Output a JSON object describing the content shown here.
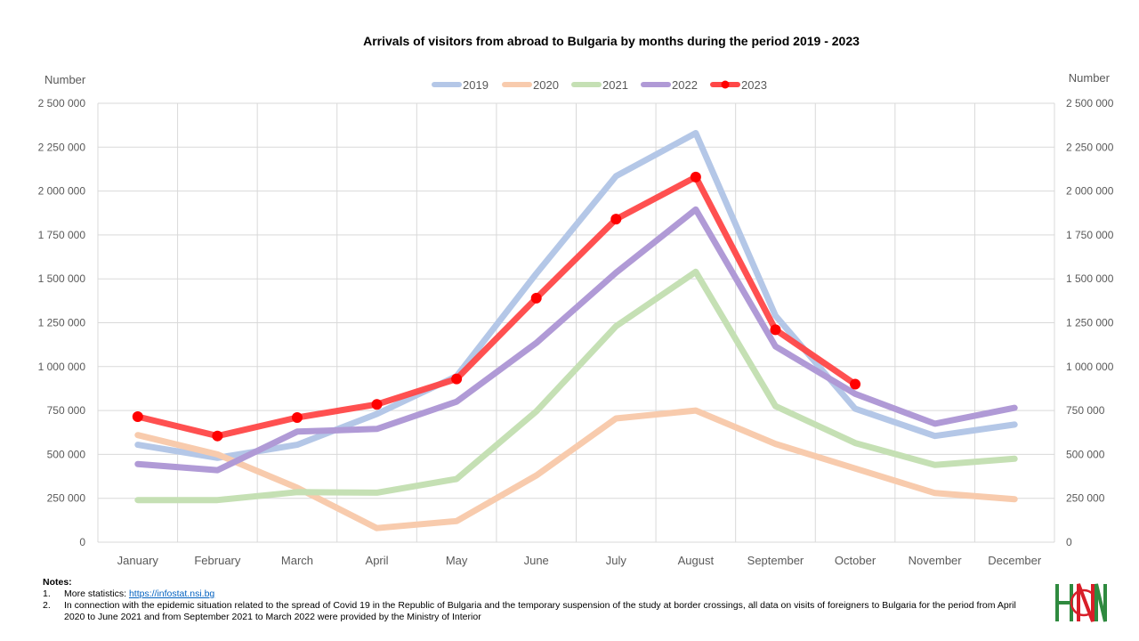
{
  "chart_data": {
    "type": "line",
    "title": "Arrivals of visitors from abroad to Bulgaria by months during the period 2019 - 2023",
    "ylabel_left": "Number",
    "ylabel_right": "Number",
    "ylim": [
      0,
      2500000
    ],
    "yticks": [
      "0",
      "250 000",
      "500 000",
      "750 000",
      "1 000 000",
      "1 250 000",
      "1 500 000",
      "1 750 000",
      "2 000 000",
      "2 250 000",
      "2 500 000"
    ],
    "ytick_values": [
      0,
      250000,
      500000,
      750000,
      1000000,
      1250000,
      1500000,
      1750000,
      2000000,
      2250000,
      2500000
    ],
    "categories": [
      "January",
      "February",
      "March",
      "April",
      "May",
      "June",
      "July",
      "August",
      "September",
      "October",
      "November",
      "December"
    ],
    "legend_position": "top-center",
    "series": [
      {
        "name": "2019",
        "color": "#b4c7e7",
        "markers": false,
        "values": [
          555000,
          480000,
          555000,
          730000,
          945000,
          1530000,
          2085000,
          2330000,
          1290000,
          760000,
          605000,
          670000
        ]
      },
      {
        "name": "2020",
        "color": "#f8cbad",
        "markers": false,
        "values": [
          610000,
          500000,
          310000,
          80000,
          120000,
          380000,
          705000,
          750000,
          560000,
          420000,
          280000,
          245000
        ]
      },
      {
        "name": "2021",
        "color": "#c5e0b4",
        "markers": false,
        "values": [
          240000,
          240000,
          285000,
          282000,
          360000,
          745000,
          1230000,
          1540000,
          775000,
          565000,
          440000,
          475000
        ]
      },
      {
        "name": "2022",
        "color": "#b09ad6",
        "markers": false,
        "values": [
          445000,
          410000,
          630000,
          645000,
          800000,
          1135000,
          1535000,
          1895000,
          1115000,
          845000,
          675000,
          765000
        ]
      },
      {
        "name": "2023",
        "color": "#ff4747",
        "marker_color": "#ff0000",
        "markers": true,
        "values": [
          715000,
          605000,
          710000,
          785000,
          930000,
          1390000,
          1840000,
          2080000,
          1210000,
          900000,
          null,
          null
        ]
      }
    ]
  },
  "notes": {
    "heading": "Notes:",
    "items": [
      {
        "num": "1.",
        "text": "More statistics: ",
        "link": "https://infostat.nsi.bg"
      },
      {
        "num": "2.",
        "text": "In connection with the epidemic situation related to the spread of Covid 19 in the Republic of Bulgaria and the temporary suspension of the study at border crossings, all data on visits of foreigners to Bulgaria for the period from April 2020 to June 2021 and from September 2021 to March 2022 were provided by the Ministry of Interior"
      }
    ]
  },
  "logo": {
    "name": "NSI logo",
    "colors": [
      "#2f8a3f",
      "#d81e28"
    ]
  }
}
